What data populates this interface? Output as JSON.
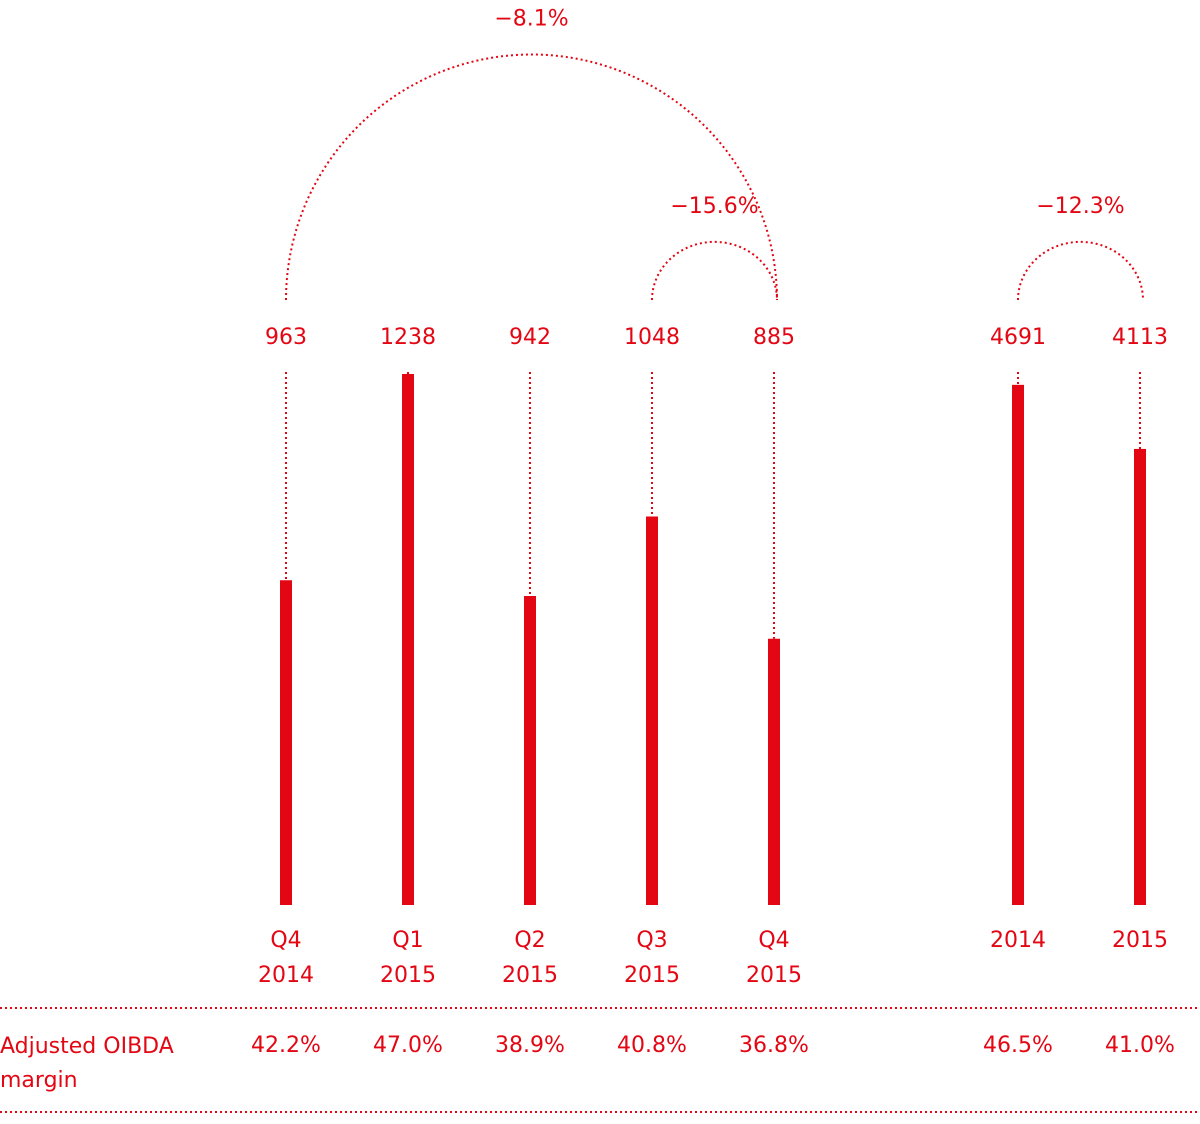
{
  "chart_data": [
    {
      "type": "bar",
      "color": "#e30613",
      "categories": [
        "Q4 2014",
        "Q1 2015",
        "Q2 2015",
        "Q3 2015",
        "Q4 2015"
      ],
      "values": [
        963,
        1238,
        942,
        1048,
        885
      ],
      "ylim": [
        530,
        1250
      ],
      "changes": [
        {
          "from": "Q4 2014",
          "to": "Q4 2015",
          "value": -8.1,
          "label": "−8.1%"
        },
        {
          "from": "Q3 2015",
          "to": "Q4 2015",
          "value": -15.6,
          "label": "−15.6%"
        }
      ],
      "margin_values": [
        42.2,
        47.0,
        38.9,
        40.8,
        36.8
      ],
      "margin_labels": [
        "42.2%",
        "47.0%",
        "38.9%",
        "40.8%",
        "36.8%"
      ]
    },
    {
      "type": "bar",
      "color": "#e30613",
      "categories": [
        "2014",
        "2015"
      ],
      "values": [
        4691,
        4113
      ],
      "ylim": [
        0,
        4870
      ],
      "changes": [
        {
          "from": "2014",
          "to": "2015",
          "value": -12.3,
          "label": "−12.3%"
        }
      ],
      "margin_values": [
        46.5,
        41.0
      ],
      "margin_labels": [
        "46.5%",
        "41.0%"
      ]
    }
  ],
  "row_label": "Adjusted OIBDA margin"
}
